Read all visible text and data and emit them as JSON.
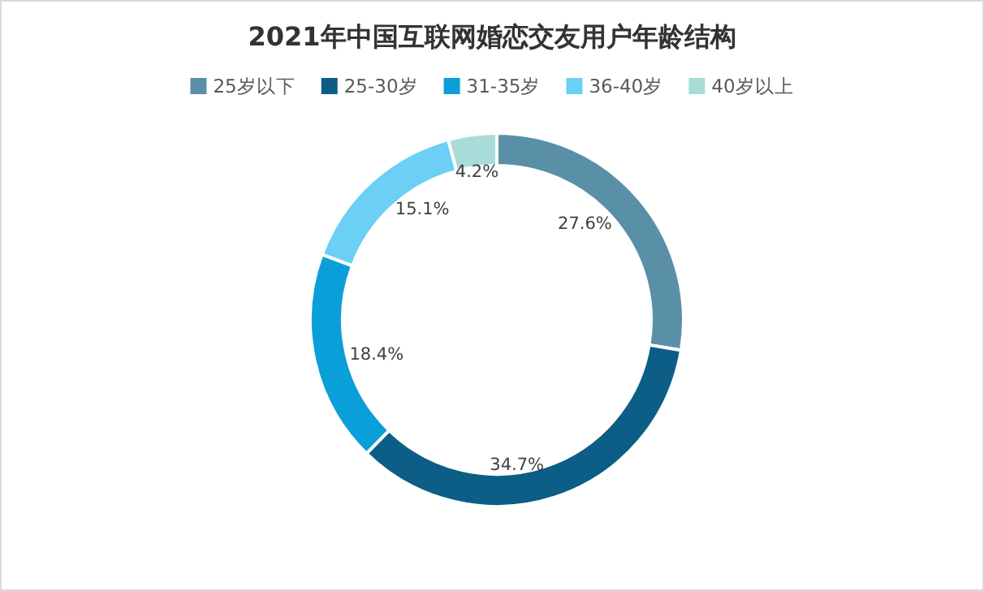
{
  "chart_data": {
    "type": "donut",
    "title": "2021年中国互联网婚恋交友用户年龄结构",
    "categories": [
      "25岁以下",
      "25-30岁",
      "31-35岁",
      "36-40岁",
      "40岁以上"
    ],
    "values": [
      27.6,
      34.7,
      18.4,
      15.1,
      4.2
    ],
    "value_labels": [
      "27.6%",
      "34.7%",
      "18.4%",
      "15.1%",
      "4.2%"
    ],
    "colors": [
      "#5a8fa8",
      "#0c5e86",
      "#0a9fd9",
      "#6ccff5",
      "#a9dcd8"
    ],
    "legend": "top"
  }
}
